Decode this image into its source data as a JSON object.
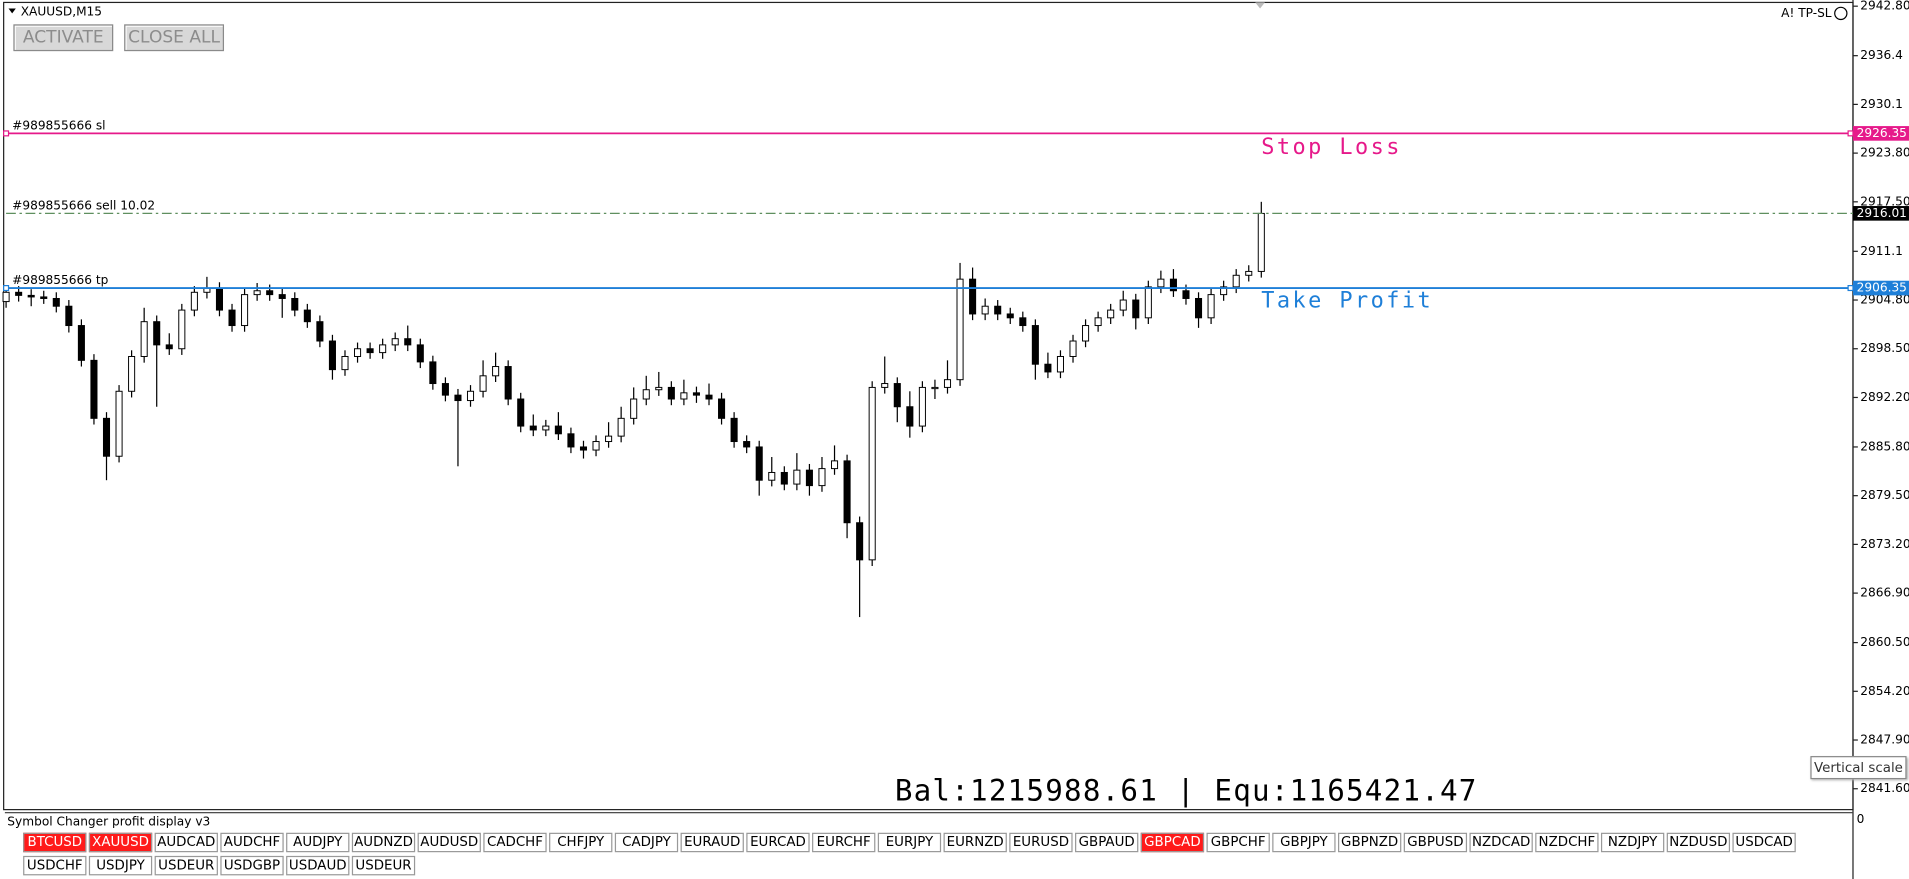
{
  "window_title": "XAUUSD,M15",
  "buttons": [
    "ACTIVATE",
    "CLOSE ALL"
  ],
  "top_right_label": "A! TP-SL",
  "balance_text": "Bal:1215988.61 | Equ:1165421.47",
  "tooltip": "Vertical scale",
  "chart_data": {
    "type": "candlestick",
    "candles": [
      [
        2904.6,
        2906.6,
        2903.8,
        2905.8
      ],
      [
        2905.8,
        2906.6,
        2904.6,
        2905.4
      ],
      [
        2905.4,
        2906.2,
        2904.0,
        2905.2
      ],
      [
        2905.2,
        2906.0,
        2904.3,
        2905.0
      ],
      [
        2905.0,
        2905.8,
        2903.2,
        2904.0
      ],
      [
        2904.0,
        2904.8,
        2900.6,
        2901.5
      ],
      [
        2901.5,
        2902.3,
        2896.2,
        2897.0
      ],
      [
        2897.0,
        2897.8,
        2888.7,
        2889.5
      ],
      [
        2889.5,
        2890.3,
        2881.5,
        2884.6
      ],
      [
        2884.6,
        2893.8,
        2883.8,
        2893.0
      ],
      [
        2893.0,
        2898.3,
        2892.2,
        2897.5
      ],
      [
        2897.5,
        2903.8,
        2896.7,
        2902.0
      ],
      [
        2902.0,
        2902.8,
        2891.0,
        2899.0
      ],
      [
        2899.0,
        2900.5,
        2897.7,
        2898.5
      ],
      [
        2898.5,
        2904.3,
        2897.7,
        2903.5
      ],
      [
        2903.5,
        2906.6,
        2902.7,
        2905.8
      ],
      [
        2905.8,
        2907.8,
        2905.0,
        2906.3
      ],
      [
        2906.3,
        2907.1,
        2902.7,
        2903.5
      ],
      [
        2903.5,
        2904.3,
        2900.7,
        2901.5
      ],
      [
        2901.5,
        2906.3,
        2900.7,
        2905.5
      ],
      [
        2905.5,
        2907.0,
        2904.7,
        2906.0
      ],
      [
        2906.0,
        2906.8,
        2904.7,
        2905.5
      ],
      [
        2905.5,
        2906.3,
        2902.5,
        2905.0
      ],
      [
        2905.0,
        2905.8,
        2902.7,
        2903.5
      ],
      [
        2903.5,
        2904.3,
        2901.2,
        2902.0
      ],
      [
        2902.0,
        2902.8,
        2898.7,
        2899.5
      ],
      [
        2899.5,
        2900.3,
        2894.5,
        2895.8
      ],
      [
        2895.8,
        2898.3,
        2895.0,
        2897.5
      ],
      [
        2897.5,
        2899.3,
        2896.7,
        2898.5
      ],
      [
        2898.5,
        2899.3,
        2897.2,
        2898.0
      ],
      [
        2898.0,
        2899.8,
        2897.2,
        2899.0
      ],
      [
        2899.0,
        2900.6,
        2898.2,
        2899.8
      ],
      [
        2899.8,
        2901.5,
        2898.2,
        2899.0
      ],
      [
        2899.0,
        2899.8,
        2896.0,
        2896.8
      ],
      [
        2896.8,
        2897.6,
        2893.2,
        2894.0
      ],
      [
        2894.0,
        2894.8,
        2891.7,
        2892.5
      ],
      [
        2892.5,
        2893.3,
        2883.3,
        2891.8
      ],
      [
        2891.8,
        2893.8,
        2891.0,
        2893.0
      ],
      [
        2893.0,
        2897.0,
        2892.2,
        2895.0
      ],
      [
        2895.0,
        2898.0,
        2894.2,
        2896.2
      ],
      [
        2896.2,
        2897.0,
        2891.2,
        2892.0
      ],
      [
        2892.0,
        2892.8,
        2887.7,
        2888.5
      ],
      [
        2888.5,
        2890.0,
        2887.2,
        2888.0
      ],
      [
        2888.0,
        2889.3,
        2887.2,
        2888.5
      ],
      [
        2888.5,
        2890.3,
        2886.7,
        2887.5
      ],
      [
        2887.5,
        2888.3,
        2885.0,
        2885.8
      ],
      [
        2885.8,
        2886.6,
        2884.3,
        2885.4
      ],
      [
        2885.4,
        2887.3,
        2884.6,
        2886.5
      ],
      [
        2886.5,
        2889.0,
        2885.7,
        2887.2
      ],
      [
        2887.2,
        2891.0,
        2886.4,
        2889.5
      ],
      [
        2889.5,
        2893.5,
        2888.7,
        2892.0
      ],
      [
        2892.0,
        2895.0,
        2891.2,
        2893.2
      ],
      [
        2893.2,
        2895.5,
        2892.4,
        2893.5
      ],
      [
        2893.5,
        2894.3,
        2891.2,
        2892.0
      ],
      [
        2892.0,
        2894.5,
        2891.2,
        2892.8
      ],
      [
        2892.8,
        2893.6,
        2891.5,
        2892.5
      ],
      [
        2892.5,
        2894.0,
        2891.2,
        2892.0
      ],
      [
        2892.0,
        2892.8,
        2888.7,
        2889.5
      ],
      [
        2889.5,
        2890.3,
        2885.7,
        2886.5
      ],
      [
        2886.5,
        2887.3,
        2885.0,
        2885.8
      ],
      [
        2885.8,
        2886.6,
        2879.5,
        2881.5
      ],
      [
        2881.5,
        2884.5,
        2880.7,
        2882.5
      ],
      [
        2882.5,
        2883.3,
        2880.2,
        2881.0
      ],
      [
        2881.0,
        2885.0,
        2880.2,
        2882.8
      ],
      [
        2882.8,
        2883.6,
        2879.5,
        2880.8
      ],
      [
        2880.8,
        2884.5,
        2880.0,
        2883.0
      ],
      [
        2883.0,
        2886.0,
        2882.2,
        2884.0
      ],
      [
        2884.0,
        2884.8,
        2874.0,
        2876.0
      ],
      [
        2876.0,
        2876.8,
        2863.8,
        2871.2
      ],
      [
        2871.2,
        2894.3,
        2870.4,
        2893.5
      ],
      [
        2893.5,
        2897.5,
        2892.7,
        2894.0
      ],
      [
        2894.0,
        2894.8,
        2889.0,
        2891.0
      ],
      [
        2891.0,
        2893.0,
        2887.0,
        2888.5
      ],
      [
        2888.5,
        2894.3,
        2887.7,
        2893.5
      ],
      [
        2893.5,
        2894.5,
        2892.0,
        2893.5
      ],
      [
        2893.5,
        2897.0,
        2892.7,
        2894.5
      ],
      [
        2894.5,
        2909.6,
        2893.7,
        2907.5
      ],
      [
        2907.5,
        2909.0,
        2902.2,
        2903.0
      ],
      [
        2903.0,
        2905.0,
        2902.2,
        2904.0
      ],
      [
        2904.0,
        2904.8,
        2902.2,
        2903.0
      ],
      [
        2903.0,
        2903.8,
        2901.7,
        2902.5
      ],
      [
        2902.5,
        2903.3,
        2900.7,
        2901.5
      ],
      [
        2901.5,
        2902.3,
        2894.5,
        2896.5
      ],
      [
        2896.5,
        2898.0,
        2894.7,
        2895.5
      ],
      [
        2895.5,
        2898.3,
        2894.7,
        2897.5
      ],
      [
        2897.5,
        2900.3,
        2896.7,
        2899.5
      ],
      [
        2899.5,
        2902.3,
        2898.7,
        2901.5
      ],
      [
        2901.5,
        2903.3,
        2900.7,
        2902.5
      ],
      [
        2902.5,
        2904.3,
        2901.7,
        2903.5
      ],
      [
        2903.5,
        2906.0,
        2902.7,
        2904.8
      ],
      [
        2904.8,
        2905.6,
        2901.0,
        2902.5
      ],
      [
        2902.5,
        2907.3,
        2901.7,
        2906.5
      ],
      [
        2906.5,
        2908.6,
        2905.7,
        2907.5
      ],
      [
        2907.5,
        2908.8,
        2905.2,
        2906.0
      ],
      [
        2906.0,
        2906.8,
        2904.2,
        2905.0
      ],
      [
        2905.0,
        2905.8,
        2901.2,
        2902.5
      ],
      [
        2902.5,
        2906.3,
        2901.7,
        2905.5
      ],
      [
        2905.5,
        2907.3,
        2904.7,
        2906.5
      ],
      [
        2906.5,
        2908.8,
        2905.7,
        2908.0
      ],
      [
        2908.0,
        2909.3,
        2907.2,
        2908.5
      ],
      [
        2908.5,
        2917.5,
        2907.7,
        2916.0
      ]
    ],
    "up_color": "#ffffff",
    "down_color": "#000000",
    "ylim": [
      2838.9,
      2943.6
    ],
    "yticks": [
      {
        "value": 2942.8,
        "label": "2942.80"
      },
      2936.4,
      2930.1,
      {
        "value": 2923.8,
        "label": "2923.80"
      },
      {
        "value": 2917.5,
        "label": "2917.50"
      },
      2911.1,
      {
        "value": 2904.8,
        "label": "2904.80"
      },
      {
        "value": 2898.5,
        "label": "2898.50"
      },
      {
        "value": 2892.2,
        "label": "2892.20"
      },
      {
        "value": 2885.8,
        "label": "2885.80"
      },
      {
        "value": 2879.5,
        "label": "2879.50"
      },
      {
        "value": 2873.2,
        "label": "2873.20"
      },
      {
        "value": 2866.9,
        "label": "2866.90"
      },
      {
        "value": 2860.5,
        "label": "2860.50"
      },
      {
        "value": 2854.2,
        "label": "2854.20"
      },
      {
        "value": 2847.9,
        "label": "2847.90"
      },
      {
        "value": 2841.6,
        "label": "2841.60"
      }
    ],
    "levels": [
      {
        "label": "#989855666 sl",
        "value": 2926.35,
        "color": "#e6198a",
        "tag_color": "#e6198a",
        "style": "solid",
        "annotation": "Stop Loss"
      },
      {
        "label": "#989855666 sell 10.02",
        "value": 2916.01,
        "color": "#5f8f5f",
        "tag_color": "#000000",
        "style": "dashdot"
      },
      {
        "label": "#989855666 tp",
        "value": 2906.35,
        "color": "#1e7fd8",
        "tag_color": "#1e7fd8",
        "style": "solid",
        "annotation": "Take Profit"
      }
    ]
  },
  "indicator_panel": {
    "title": "Symbol Changer profit display v3",
    "scale_label": "0",
    "symbols": [
      {
        "name": "BTCUSD",
        "active": true
      },
      {
        "name": "XAUUSD",
        "active": true
      },
      {
        "name": "AUDCAD",
        "active": false
      },
      {
        "name": "AUDCHF",
        "active": false
      },
      {
        "name": "AUDJPY",
        "active": false
      },
      {
        "name": "AUDNZD",
        "active": false
      },
      {
        "name": "AUDUSD",
        "active": false
      },
      {
        "name": "CADCHF",
        "active": false
      },
      {
        "name": "CHFJPY",
        "active": false
      },
      {
        "name": "CADJPY",
        "active": false
      },
      {
        "name": "EURAUD",
        "active": false
      },
      {
        "name": "EURCAD",
        "active": false
      },
      {
        "name": "EURCHF",
        "active": false
      },
      {
        "name": "EURJPY",
        "active": false
      },
      {
        "name": "EURNZD",
        "active": false
      },
      {
        "name": "EURUSD",
        "active": false
      },
      {
        "name": "GBPAUD",
        "active": false
      },
      {
        "name": "GBPCAD",
        "active": true
      },
      {
        "name": "GBPCHF",
        "active": false
      },
      {
        "name": "GBPJPY",
        "active": false
      },
      {
        "name": "GBPNZD",
        "active": false
      },
      {
        "name": "GBPUSD",
        "active": false
      },
      {
        "name": "NZDCAD",
        "active": false
      },
      {
        "name": "NZDCHF",
        "active": false
      },
      {
        "name": "NZDJPY",
        "active": false
      },
      {
        "name": "NZDUSD",
        "active": false
      },
      {
        "name": "USDCAD",
        "active": false
      },
      {
        "name": "USDCHF",
        "active": false
      },
      {
        "name": "USDJPY",
        "active": false
      },
      {
        "name": "USDEUR",
        "active": false
      },
      {
        "name": "USDGBP",
        "active": false
      },
      {
        "name": "USDAUD",
        "active": false
      },
      {
        "name": "USDEUR",
        "active": false
      }
    ],
    "active_color": "#ff1a1a"
  }
}
